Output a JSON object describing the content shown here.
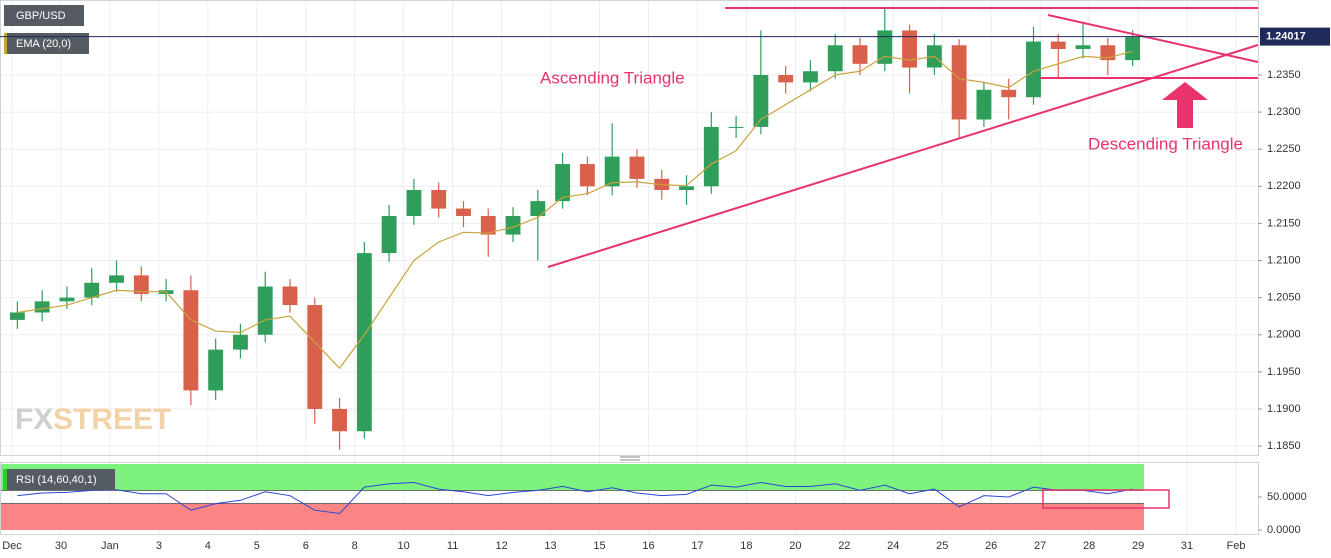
{
  "chart_data": [
    {
      "type": "candlestick",
      "title": "GBP/USD",
      "x_axis_labels": [
        "Dec",
        "30",
        "Jan",
        "3",
        "4",
        "5",
        "6",
        "8",
        "10",
        "11",
        "12",
        "13",
        "15",
        "16",
        "17",
        "18",
        "20",
        "22",
        "24",
        "25",
        "26",
        "27",
        "28",
        "29",
        "31",
        "Feb"
      ],
      "open": [
        1.202,
        1.203,
        1.2045,
        1.205,
        1.207,
        1.208,
        1.2055,
        1.206,
        1.1925,
        1.198,
        1.2,
        1.2065,
        1.204,
        1.19,
        1.187,
        1.211,
        1.216,
        1.2195,
        1.217,
        1.216,
        1.2135,
        1.216,
        1.218,
        1.223,
        1.22,
        1.224,
        1.221,
        1.2195,
        1.22,
        1.228,
        1.228,
        1.235,
        1.234,
        1.2355,
        1.239,
        1.2365,
        1.241,
        1.236,
        1.239,
        1.229,
        1.233,
        1.232,
        1.2395,
        1.2385,
        1.239,
        1.237
      ],
      "high": [
        1.2045,
        1.206,
        1.2065,
        1.209,
        1.21,
        1.2092,
        1.2075,
        1.208,
        1.1995,
        1.2015,
        1.2085,
        1.2075,
        1.205,
        1.1915,
        1.2125,
        1.2175,
        1.221,
        1.2205,
        1.218,
        1.217,
        1.2172,
        1.2195,
        1.2245,
        1.224,
        1.2285,
        1.225,
        1.2222,
        1.2215,
        1.23,
        1.2295,
        1.241,
        1.2362,
        1.237,
        1.2405,
        1.24,
        1.244,
        1.2418,
        1.2405,
        1.2398,
        1.234,
        1.2345,
        1.2415,
        1.2405,
        1.242,
        1.24,
        1.241
      ],
      "low": [
        1.2008,
        1.2018,
        1.2035,
        1.204,
        1.2058,
        1.2045,
        1.2045,
        1.1905,
        1.1912,
        1.1968,
        1.199,
        1.203,
        1.188,
        1.1845,
        1.186,
        1.2098,
        1.2148,
        1.2158,
        1.2145,
        1.2105,
        1.2125,
        1.21,
        1.217,
        1.2188,
        1.2188,
        1.2198,
        1.2182,
        1.2175,
        1.219,
        1.2265,
        1.227,
        1.2325,
        1.2328,
        1.2345,
        1.235,
        1.2355,
        1.2325,
        1.235,
        1.2265,
        1.228,
        1.229,
        1.231,
        1.2345,
        1.2372,
        1.235,
        1.2362
      ],
      "close": [
        1.203,
        1.2045,
        1.205,
        1.207,
        1.208,
        1.2055,
        1.206,
        1.1925,
        1.198,
        1.2,
        1.2065,
        1.204,
        1.19,
        1.187,
        1.211,
        1.216,
        1.2195,
        1.217,
        1.216,
        1.2135,
        1.216,
        1.218,
        1.223,
        1.22,
        1.224,
        1.221,
        1.2195,
        1.22,
        1.228,
        1.228,
        1.235,
        1.234,
        1.2355,
        1.239,
        1.2365,
        1.241,
        1.236,
        1.239,
        1.229,
        1.233,
        1.232,
        1.2395,
        1.2385,
        1.239,
        1.237,
        1.2401
      ],
      "up_color": "#2f9e5a",
      "down_color": "#d9614c",
      "series": [
        {
          "name": "EMA (20,0)",
          "color": "#c9a43c",
          "values": [
            1.203,
            1.2035,
            1.204,
            1.205,
            1.206,
            1.2058,
            1.2058,
            1.202,
            1.2005,
            1.2003,
            1.202,
            1.2025,
            1.199,
            1.1955,
            1.2,
            1.205,
            1.21,
            1.2125,
            1.2138,
            1.2137,
            1.2145,
            1.2158,
            1.2185,
            1.219,
            1.2205,
            1.2206,
            1.2202,
            1.2201,
            1.223,
            1.2248,
            1.229,
            1.231,
            1.233,
            1.235,
            1.2355,
            1.2375,
            1.237,
            1.2375,
            1.2345,
            1.234,
            1.2333,
            1.2355,
            1.2365,
            1.2375,
            1.2373,
            1.2382
          ]
        }
      ],
      "last_price": 1.24017,
      "ylim": [
        1.1838,
        1.2451
      ],
      "yticks": [
        {
          "value": 1.185,
          "label": "1.1850"
        },
        {
          "value": 1.19,
          "label": "1.1900"
        },
        {
          "value": 1.195,
          "label": "1.1950"
        },
        {
          "value": 1.2,
          "label": "1.2000"
        },
        {
          "value": 1.205,
          "label": "1.2050"
        },
        {
          "value": 1.21,
          "label": "1.2100"
        },
        {
          "value": 1.215,
          "label": "1.2150"
        },
        {
          "value": 1.22,
          "label": "1.2200"
        },
        {
          "value": 1.225,
          "label": "1.2250"
        },
        {
          "value": 1.23,
          "label": "1.2300"
        },
        {
          "value": 1.235,
          "label": "1.2350"
        }
      ],
      "grid": true,
      "annotations": [
        "Ascending Triangle",
        "Descending Triangle"
      ],
      "watermark": [
        "FX",
        "STREET"
      ]
    },
    {
      "type": "line",
      "series": [
        {
          "name": "RSI (14,60,40,1)",
          "color": "#2b47d6",
          "values": [
            52,
            56,
            57,
            60,
            61,
            55,
            55,
            30,
            40,
            45,
            58,
            52,
            30,
            25,
            65,
            70,
            72,
            62,
            58,
            52,
            57,
            60,
            66,
            58,
            64,
            56,
            52,
            54,
            68,
            65,
            72,
            66,
            66,
            70,
            60,
            68,
            55,
            62,
            35,
            52,
            50,
            65,
            60,
            60,
            55,
            62
          ]
        }
      ],
      "upper_band": 60,
      "lower_band": 40,
      "ylim": [
        0,
        100
      ],
      "yticks": [
        {
          "value": 0,
          "label": "0.0000"
        },
        {
          "value": 50,
          "label": "50.0000"
        }
      ]
    }
  ]
}
